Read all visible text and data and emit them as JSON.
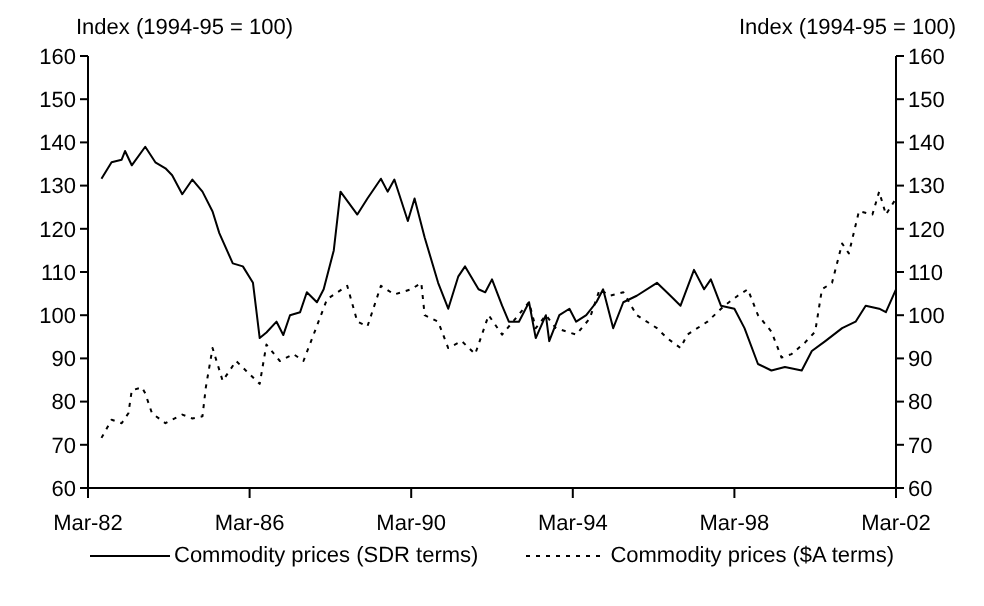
{
  "chart_data": {
    "type": "line",
    "ylabel": "Index (1994-95 = 100)",
    "y2label": "Index (1994-95 = 100)",
    "xlim": [
      "1982-03",
      "2002-03"
    ],
    "xticks": [
      {
        "value": "1982-03",
        "label": "Mar-82"
      },
      {
        "value": "1986-03",
        "label": "Mar-86"
      },
      {
        "value": "1990-03",
        "label": "Mar-90"
      },
      {
        "value": "1994-03",
        "label": "Mar-94"
      },
      {
        "value": "1998-03",
        "label": "Mar-98"
      },
      {
        "value": "2002-03",
        "label": "Mar-02"
      }
    ],
    "ylim": [
      60,
      160
    ],
    "yticks": [
      60,
      70,
      80,
      90,
      100,
      110,
      120,
      130,
      140,
      150,
      160
    ],
    "y2lim": [
      60,
      160
    ],
    "y2ticks": [
      60,
      70,
      80,
      90,
      100,
      110,
      120,
      130,
      140,
      150,
      160
    ],
    "grid": false,
    "legend": "bottom",
    "marker": "none",
    "series": [
      {
        "name": "Commodity prices (SDR terms)",
        "color": "#000000",
        "line_style": "solid",
        "x": [
          "1982-07",
          "1982-10",
          "1983-01",
          "1983-02",
          "1983-04",
          "1983-08",
          "1983-11",
          "1984-02",
          "1984-04",
          "1984-07",
          "1984-10",
          "1985-01",
          "1985-04",
          "1985-06",
          "1985-10",
          "1986-01",
          "1986-04",
          "1986-06",
          "1986-08",
          "1986-11",
          "1987-01",
          "1987-03",
          "1987-06",
          "1987-08",
          "1987-11",
          "1988-01",
          "1988-04",
          "1988-06",
          "1988-11",
          "1989-02",
          "1989-06",
          "1989-08",
          "1989-10",
          "1990-02",
          "1990-04",
          "1990-07",
          "1990-11",
          "1991-02",
          "1991-05",
          "1991-07",
          "1991-11",
          "1992-01",
          "1992-03",
          "1992-06",
          "1992-08",
          "1992-11",
          "1993-02",
          "1993-04",
          "1993-07",
          "1993-08",
          "1993-11",
          "1994-02",
          "1994-04",
          "1994-07",
          "1994-10",
          "1994-12",
          "1995-03",
          "1995-06",
          "1995-10",
          "1996-04",
          "1996-08",
          "1996-11",
          "1997-03",
          "1997-06",
          "1997-08",
          "1997-11",
          "1998-03",
          "1998-06",
          "1998-10",
          "1999-02",
          "1999-06",
          "1999-11",
          "2000-02",
          "2000-06",
          "2000-11",
          "2001-03",
          "2001-06",
          "2001-10",
          "2001-12",
          "2002-03"
        ],
        "values": [
          131.6,
          135.4,
          136,
          138,
          134.7,
          139,
          135.4,
          134,
          132.4,
          128,
          131.4,
          128.6,
          124,
          119,
          112,
          111.3,
          107.5,
          94.7,
          96,
          98.5,
          95.4,
          100,
          100.7,
          105.3,
          103,
          106,
          115,
          128.6,
          123.3,
          127,
          131.6,
          128.6,
          131.4,
          121.8,
          127,
          118,
          107.5,
          101.5,
          109,
          111.3,
          106,
          105.3,
          108.3,
          102.2,
          98.5,
          98.5,
          103,
          94.7,
          100,
          94,
          100,
          101.5,
          98.5,
          100,
          103,
          106,
          97,
          103,
          104.5,
          107.5,
          104.5,
          102.2,
          110.5,
          106,
          108.3,
          102.2,
          101.5,
          97,
          88.7,
          87.2,
          88,
          87.2,
          91.7,
          94,
          97,
          98.5,
          102.2,
          101.5,
          100.7,
          106
        ]
      },
      {
        "name": "Commodity prices ($A terms)",
        "color": "#000000",
        "line_style": "dotted",
        "x": [
          "1982-07",
          "1982-10",
          "1983-01",
          "1983-03",
          "1983-04",
          "1983-07",
          "1983-08",
          "1983-10",
          "1984-02",
          "1984-07",
          "1984-10",
          "1985-01",
          "1985-02",
          "1985-04",
          "1985-07",
          "1985-11",
          "1986-02",
          "1986-06",
          "1986-08",
          "1986-12",
          "1987-04",
          "1987-07",
          "1987-10",
          "1988-02",
          "1988-08",
          "1988-11",
          "1989-02",
          "1989-06",
          "1989-10",
          "1990-03",
          "1990-06",
          "1990-07",
          "1990-11",
          "1991-02",
          "1991-06",
          "1991-10",
          "1992-02",
          "1992-06",
          "1993-02",
          "1993-04",
          "1993-07",
          "1993-10",
          "1994-04",
          "1994-08",
          "1994-11",
          "1995-02",
          "1995-06",
          "1995-10",
          "1996-04",
          "1996-07",
          "1996-11",
          "1997-01",
          "1997-07",
          "1997-12",
          "1998-04",
          "1998-07",
          "1998-10",
          "1999-02",
          "1999-05",
          "1999-08",
          "1999-12",
          "2000-03",
          "2000-05",
          "2000-08",
          "2000-11",
          "2001-01",
          "2001-04",
          "2001-08",
          "2001-10",
          "2001-12",
          "2002-03"
        ],
        "values": [
          71.6,
          75.8,
          75,
          77.3,
          82.6,
          83.3,
          81.9,
          77.3,
          75,
          77,
          76.1,
          76.6,
          83.3,
          92.4,
          84.8,
          89.4,
          87.1,
          84.1,
          93.2,
          89.4,
          91,
          89.4,
          95.5,
          103.7,
          106.8,
          98.5,
          97.4,
          106.8,
          104.8,
          106,
          107.5,
          100,
          98.5,
          92.4,
          94,
          91,
          100,
          95.5,
          103,
          97,
          100,
          97,
          95.5,
          99.2,
          106,
          104.5,
          105.3,
          100,
          97,
          94.7,
          92.4,
          95.5,
          98.5,
          102.2,
          104.5,
          106,
          100,
          96.2,
          90.2,
          91,
          93.7,
          96.2,
          106,
          107.5,
          116.6,
          114.3,
          124.1,
          123.3,
          128.6,
          123.3,
          127
        ]
      }
    ]
  }
}
